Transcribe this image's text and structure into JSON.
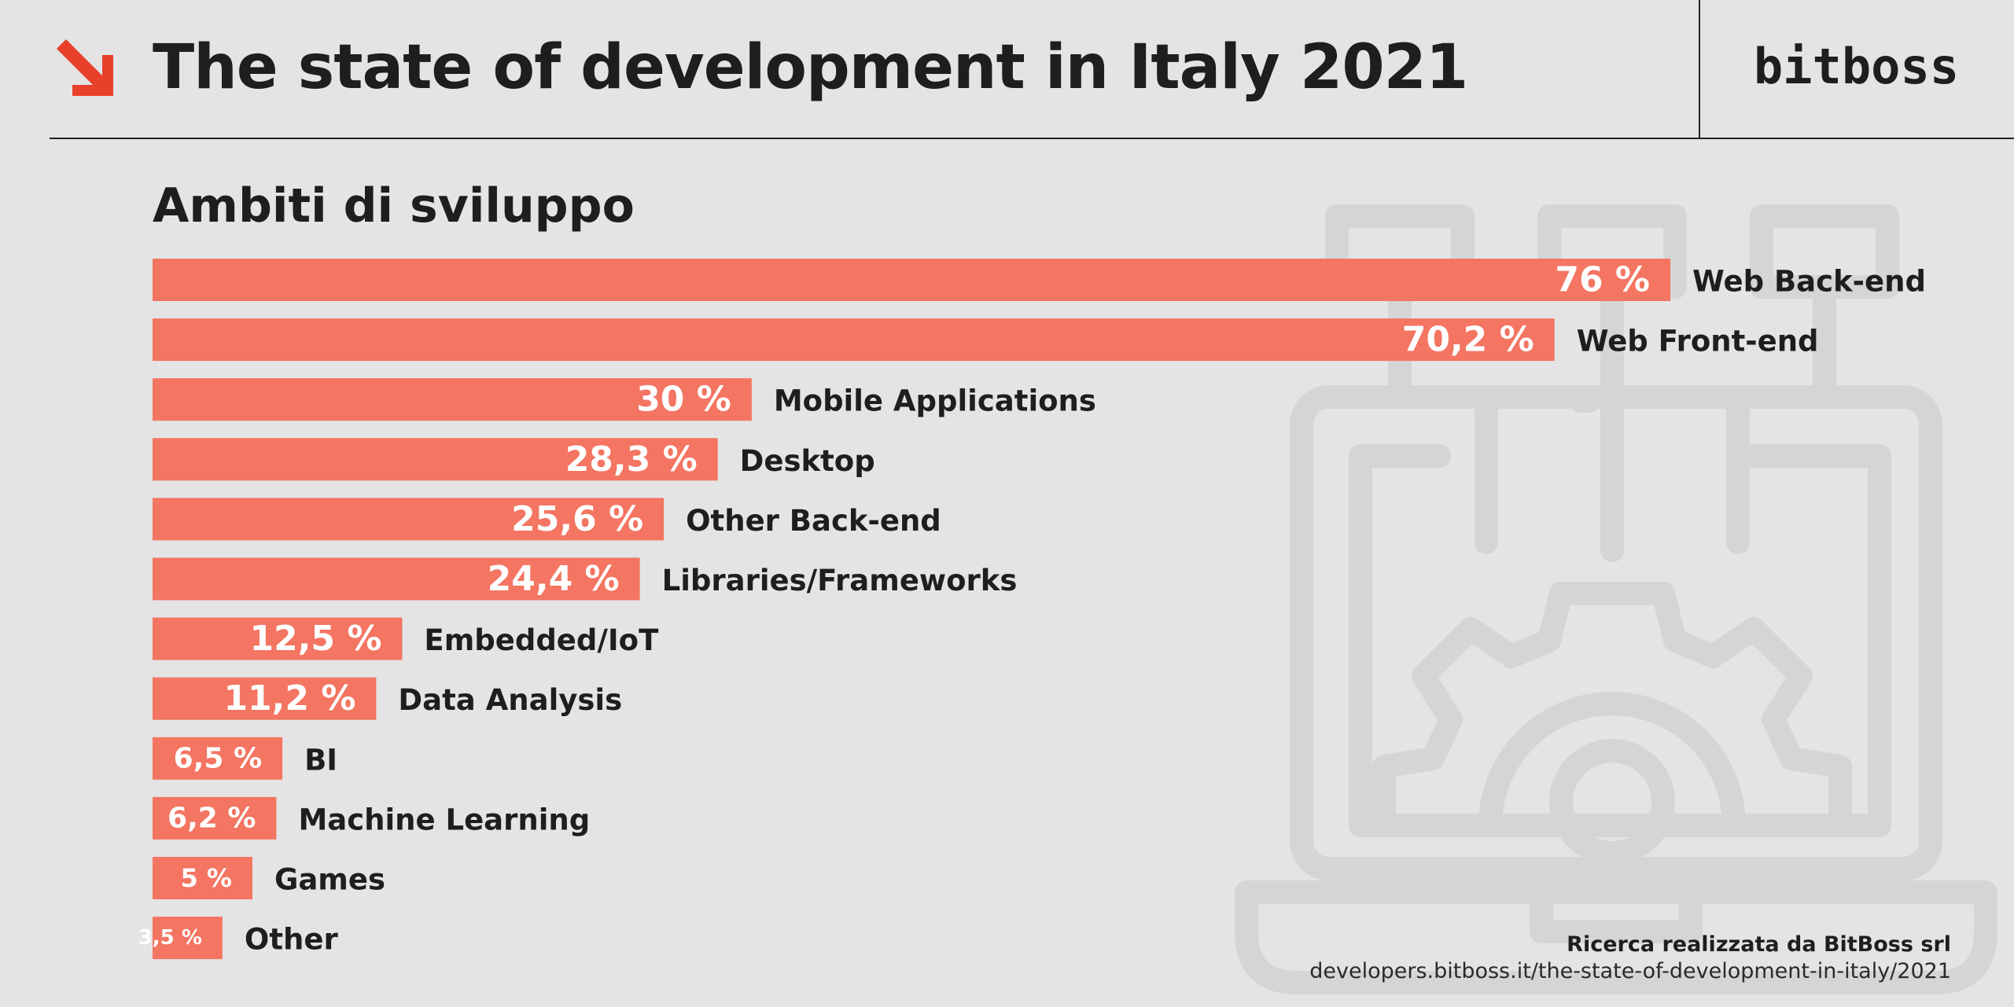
{
  "header": {
    "title": "The state of development in Italy 2021",
    "brand": "bitboss",
    "arrow_icon": "arrow-down-right-icon",
    "accent_color": "#e8402a"
  },
  "chart_data": {
    "type": "bar",
    "orientation": "horizontal",
    "title": "Ambiti di sviluppo",
    "bar_color": "#f37562",
    "value_label_suffix": " %",
    "categories": [
      "Web Back-end",
      "Web Front-end",
      "Mobile Applications",
      "Desktop",
      "Other Back-end",
      "Libraries/Frameworks",
      "Embedded/IoT",
      "Data Analysis",
      "BI",
      "Machine Learning",
      "Games",
      "Other"
    ],
    "values": [
      76,
      70.2,
      30,
      28.3,
      25.6,
      24.4,
      12.5,
      11.2,
      6.5,
      6.2,
      5,
      3.5
    ],
    "value_labels": [
      "76 %",
      "70,2 %",
      "30 %",
      "28,3 %",
      "25,6 %",
      "24,4 %",
      "12,5 %",
      "11,2 %",
      "6,5 %",
      "6,2 %",
      "5 %",
      "3,5 %"
    ]
  },
  "footer": {
    "credit": "Ricerca realizzata da BitBoss srl",
    "url": "developers.bitboss.it/the-state-of-development-in-italy/2021"
  },
  "background_icon": "laptop-gear-icon"
}
